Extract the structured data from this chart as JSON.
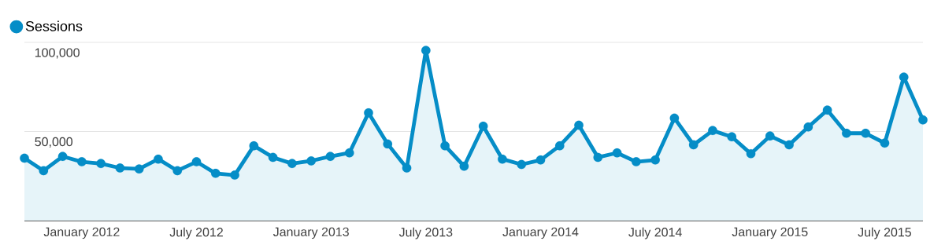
{
  "chart_data": {
    "type": "area",
    "x": [
      "2011-10",
      "2011-11",
      "2011-12",
      "2012-01",
      "2012-02",
      "2012-03",
      "2012-04",
      "2012-05",
      "2012-06",
      "2012-07",
      "2012-08",
      "2012-09",
      "2012-10",
      "2012-11",
      "2012-12",
      "2013-01",
      "2013-02",
      "2013-03",
      "2013-04",
      "2013-05",
      "2013-06",
      "2013-07",
      "2013-08",
      "2013-09",
      "2013-10",
      "2013-11",
      "2013-12",
      "2014-01",
      "2014-02",
      "2014-03",
      "2014-04",
      "2014-05",
      "2014-06",
      "2014-07",
      "2014-08",
      "2014-09",
      "2014-10",
      "2014-11",
      "2014-12",
      "2015-01",
      "2015-02",
      "2015-03",
      "2015-04",
      "2015-05",
      "2015-06",
      "2015-07",
      "2015-08",
      "2015-09"
    ],
    "series": [
      {
        "name": "Sessions",
        "color": "#058dc7",
        "values": [
          35000,
          28000,
          36000,
          33000,
          32000,
          29500,
          29000,
          34500,
          28000,
          33000,
          26500,
          25500,
          42000,
          35500,
          32000,
          33500,
          36000,
          38000,
          60500,
          43000,
          29500,
          95500,
          42000,
          30500,
          53000,
          34500,
          31500,
          34000,
          42000,
          53500,
          35500,
          38000,
          33000,
          34000,
          57500,
          42500,
          50500,
          47000,
          37500,
          47500,
          42500,
          52500,
          62000,
          49000,
          49000,
          43500,
          80500,
          56500
        ]
      }
    ],
    "xlim": [
      "2011-10",
      "2015-09"
    ],
    "xticks": [
      {
        "value": "2012-01",
        "label": "January 2012"
      },
      {
        "value": "2012-07",
        "label": "July 2012"
      },
      {
        "value": "2013-01",
        "label": "January 2013"
      },
      {
        "value": "2013-07",
        "label": "July 2013"
      },
      {
        "value": "2014-01",
        "label": "January 2014"
      },
      {
        "value": "2014-07",
        "label": "July 2014"
      },
      {
        "value": "2015-01",
        "label": "January 2015"
      },
      {
        "value": "2015-07",
        "label": "July 2015"
      }
    ],
    "ylim": [
      0,
      100000
    ],
    "yticks": [
      {
        "value": 50000,
        "label": "50,000"
      },
      {
        "value": 100000,
        "label": "100,000"
      }
    ],
    "grid": "y",
    "legend": "top left",
    "marker": "circle",
    "line_style": "solid"
  }
}
